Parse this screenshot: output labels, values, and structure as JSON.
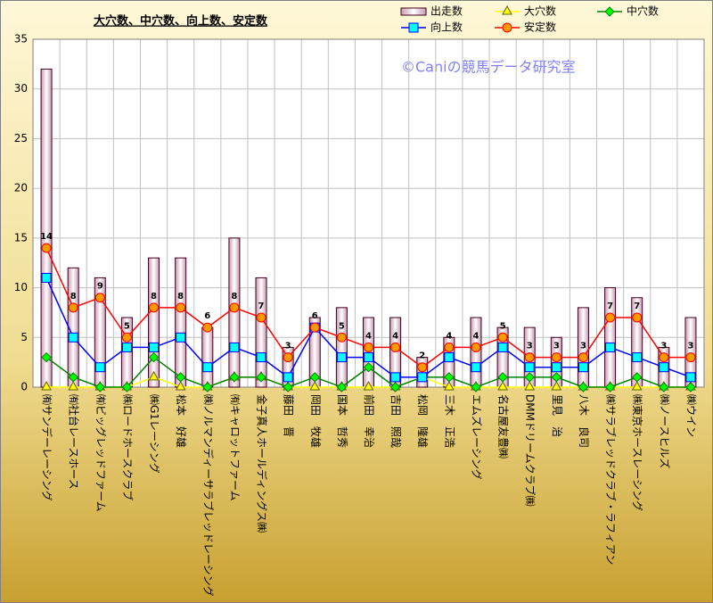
{
  "chart_data": {
    "type": "combo",
    "title": "大穴数、中穴数、向上数、安定数",
    "watermark": "©Caniの競馬データ研究室",
    "categories": [
      "㈲サンデーレーシング",
      "㈲社台レースホース",
      "㈲ビッグレッドファーム",
      "㈱ロードホースクラブ",
      "㈱G1レーシング",
      "松本　好雄",
      "㈱ノルマンディーサラブレッドレーシング",
      "㈲キャロットファーム",
      "金子真人ホールディングス㈱",
      "藤田　晋",
      "岡田　牧雄",
      "国本　哲秀",
      "前田　幸治",
      "吉田　照哉",
      "松岡　隆雄",
      "三木　正浩",
      "エムズレーシング",
      "名古屋友豊㈱",
      "DMMドリームクラブ㈱",
      "里見　治",
      "八木　良司",
      "㈱サラブレッドクラブ・ラフィアン",
      "㈱東京ホースレーシング",
      "㈱ノースヒルズ",
      "㈱ウイン"
    ],
    "series": [
      {
        "name": "出走数",
        "type": "bar",
        "color": "#ffd0e0",
        "values": [
          32,
          12,
          11,
          7,
          13,
          13,
          6,
          15,
          11,
          4,
          7,
          8,
          7,
          7,
          3,
          5,
          7,
          6,
          6,
          5,
          8,
          10,
          9,
          4,
          7
        ]
      },
      {
        "name": "大穴数",
        "type": "line",
        "marker": "triangle",
        "color": "#ffff00",
        "values": [
          0,
          0,
          0,
          0,
          1,
          0,
          0,
          1,
          1,
          0,
          0,
          0,
          0,
          0,
          1,
          0,
          0,
          0,
          0,
          0,
          0,
          0,
          0,
          0,
          0
        ]
      },
      {
        "name": "中穴数",
        "type": "line",
        "marker": "diamond",
        "color": "#008000",
        "values": [
          3,
          1,
          0,
          0,
          3,
          1,
          0,
          1,
          1,
          0,
          1,
          0,
          2,
          0,
          1,
          1,
          0,
          1,
          1,
          1,
          0,
          0,
          1,
          0,
          0
        ]
      },
      {
        "name": "向上数",
        "type": "line",
        "marker": "square",
        "color": "#0000ff",
        "values": [
          11,
          5,
          2,
          4,
          4,
          5,
          2,
          4,
          3,
          1,
          6,
          3,
          3,
          1,
          1,
          3,
          2,
          4,
          2,
          2,
          2,
          4,
          3,
          2,
          1
        ]
      },
      {
        "name": "安定数",
        "type": "line",
        "marker": "circle",
        "color": "#ff0000",
        "values": [
          14,
          8,
          9,
          5,
          8,
          8,
          6,
          8,
          7,
          3,
          6,
          5,
          4,
          4,
          2,
          4,
          4,
          5,
          3,
          3,
          3,
          7,
          7,
          3,
          3
        ],
        "data_labels": true
      }
    ],
    "ylim": [
      0,
      35
    ],
    "yticks": [
      0,
      5,
      10,
      15,
      20,
      25,
      30,
      35
    ],
    "grid": true
  }
}
